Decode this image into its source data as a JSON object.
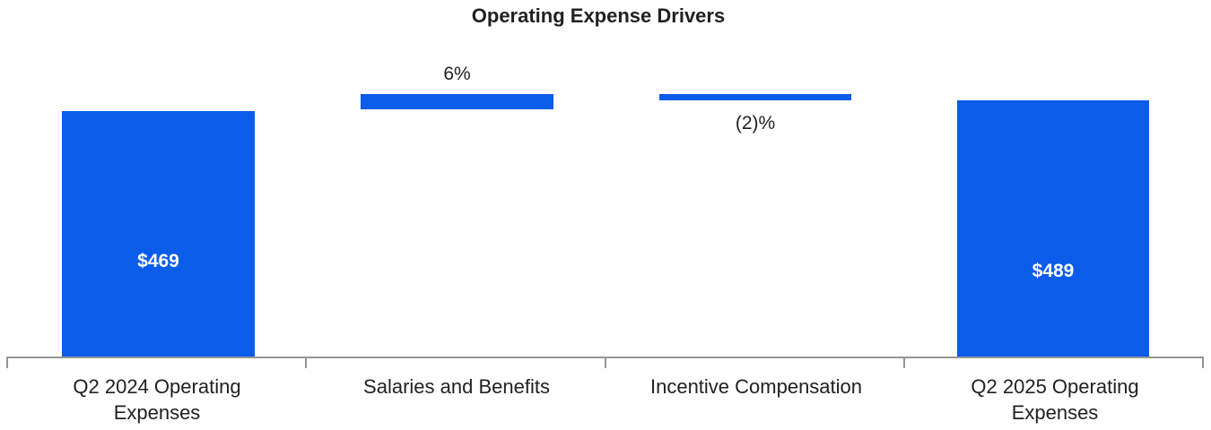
{
  "chart": {
    "title": "Operating Expense Drivers",
    "title_style": "left:0px;top:6px;width:1334px;color:#212121",
    "colors": {
      "bar_fill": "#0b5ce8",
      "axis_line": "#969696",
      "text": "#212121",
      "value_label_inside": "#ffffff"
    },
    "plot": {
      "axis_line_style": "left:8px;top:398px;width:1334px;height:2px;background:#969696",
      "ticks": [
        {
          "style": "left:7px;top:398px;height:13px;background:#969696"
        },
        {
          "style": "left:340px;top:398px;height:13px;background:#969696"
        },
        {
          "style": "left:674px;top:398px;height:13px;background:#969696"
        },
        {
          "style": "left:1007px;top:398px;height:13px;background:#969696"
        },
        {
          "style": "left:1340px;top:398px;height:13px;background:#969696"
        }
      ],
      "bars": [
        {
          "style": "left:69px;top:124px;width:215px;height:274px;background:#0b5ce8"
        },
        {
          "style": "left:402px;top:105px;width:215px;height:17px;background:#0b5ce8"
        },
        {
          "style": "left:735px;top:105px;width:214px;height:7px;background:#0b5ce8"
        },
        {
          "style": "left:1067px;top:112px;width:214px;height:286px;background:#0b5ce8"
        }
      ],
      "value_labels": [
        {
          "text": "$469",
          "style": "left:69px;top:281px;width:215px;color:#ffffff"
        },
        {
          "text": "6%",
          "style": "left:402px;top:72px;width:215px;color:#212121"
        },
        {
          "text": "(2)%",
          "style": "left:735px;top:127px;width:214px;color:#212121"
        },
        {
          "text": "$489",
          "style": "left:1067px;top:292px;width:214px;color:#ffffff"
        }
      ],
      "category_labels": [
        {
          "text": "Q2 2024 Operating\nExpenses",
          "style": "left:8px;width:334px"
        },
        {
          "text": "Salaries and Benefits",
          "style": "left:342px;width:334px"
        },
        {
          "text": "Incentive Compensation",
          "style": "left:676px;width:334px"
        },
        {
          "text": "Q2 2025 Operating\nExpenses",
          "style": "left:1009px;width:334px"
        }
      ]
    }
  },
  "chart_data": {
    "type": "bar",
    "subtype": "waterfall",
    "title": "Operating Expense Drivers",
    "categories": [
      "Q2 2024 Operating Expenses",
      "Salaries and Benefits",
      "Incentive Compensation",
      "Q2 2025 Operating Expenses"
    ],
    "series": [
      {
        "name": "Operating Expenses",
        "points": [
          {
            "category": "Q2 2024 Operating Expenses",
            "role": "start-total",
            "value": 469,
            "unit": "$",
            "label": "$469",
            "label_position": "inside"
          },
          {
            "category": "Salaries and Benefits",
            "role": "increase",
            "value": 6,
            "unit": "%",
            "label": "6%",
            "label_position": "above"
          },
          {
            "category": "Incentive Compensation",
            "role": "decrease",
            "value": -2,
            "unit": "%",
            "label": "(2)%",
            "label_position": "below"
          },
          {
            "category": "Q2 2025 Operating Expenses",
            "role": "end-total",
            "value": 489,
            "unit": "$",
            "label": "$489",
            "label_position": "inside"
          }
        ]
      }
    ],
    "bar_color": "#0b5ce8",
    "xlabel": "",
    "ylabel": "",
    "y_axis_visible": false,
    "gridlines": false,
    "legend": false,
    "baseline": 0
  }
}
